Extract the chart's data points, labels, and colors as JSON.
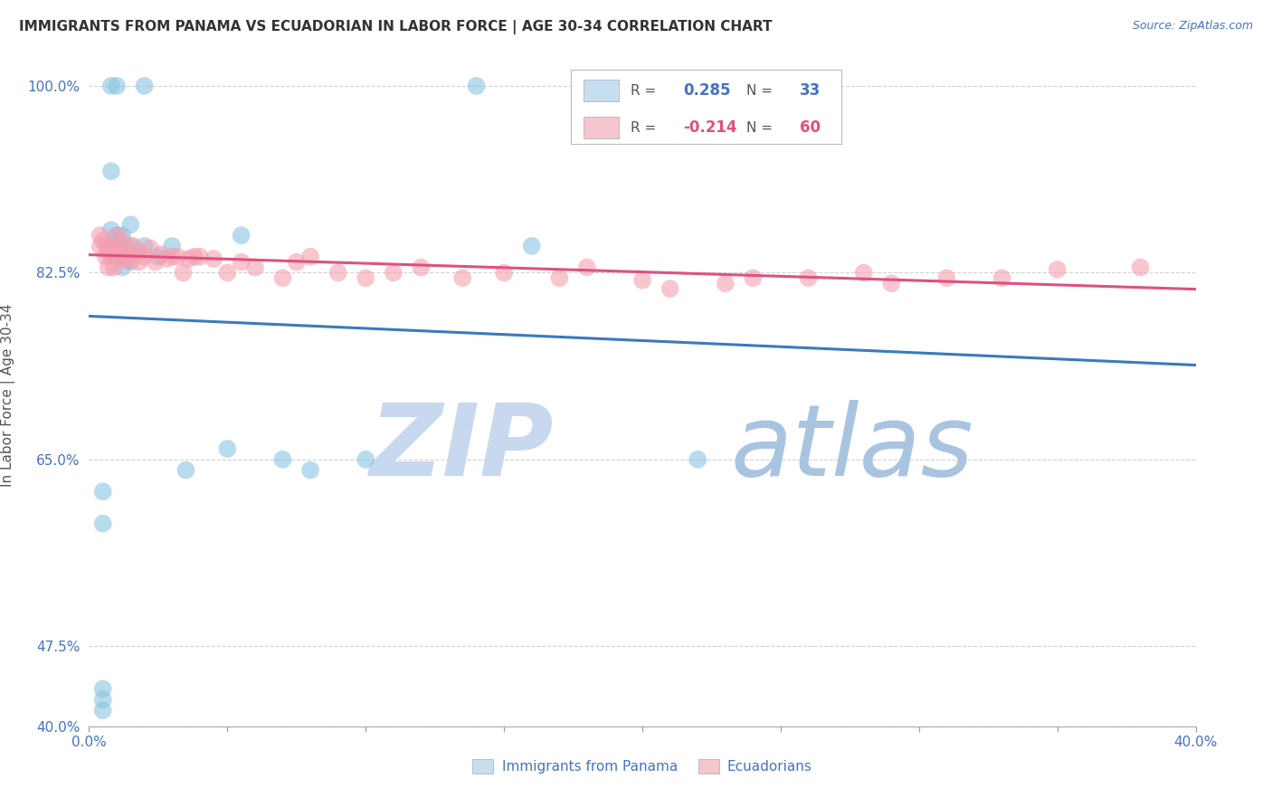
{
  "title": "IMMIGRANTS FROM PANAMA VS ECUADORIAN IN LABOR FORCE | AGE 30-34 CORRELATION CHART",
  "source": "Source: ZipAtlas.com",
  "ylabel": "In Labor Force | Age 30-34",
  "xlim": [
    0.0,
    0.4
  ],
  "ylim": [
    0.4,
    1.02
  ],
  "ytick_positions": [
    0.4,
    0.475,
    0.65,
    0.825,
    1.0
  ],
  "ytick_labels": [
    "40.0%",
    "47.5%",
    "65.0%",
    "82.5%",
    "100.0%"
  ],
  "xtick_positions": [
    0.0,
    0.05,
    0.1,
    0.15,
    0.2,
    0.25,
    0.3,
    0.35,
    0.4
  ],
  "xtick_labels": [
    "0.0%",
    "",
    "",
    "",
    "",
    "",
    "",
    "",
    "40.0%"
  ],
  "panama_R": 0.285,
  "panama_N": 33,
  "ecuador_R": -0.214,
  "ecuador_N": 60,
  "panama_dot_color": "#89c4e1",
  "ecuador_dot_color": "#f4a0b0",
  "panama_line_color": "#3a7abf",
  "ecuador_line_color": "#e05080",
  "legend_bg_panama": "#c5dff0",
  "legend_bg_ecuador": "#f5c5d0",
  "title_color": "#333333",
  "axis_label_color": "#4472c4",
  "grid_color": "#cccccc",
  "watermark_zip_color": "#c8d8ee",
  "watermark_atlas_color": "#a8c4e0",
  "panama_x": [
    0.005,
    0.005,
    0.005,
    0.005,
    0.005,
    0.008,
    0.008,
    0.008,
    0.008,
    0.01,
    0.01,
    0.01,
    0.01,
    0.012,
    0.012,
    0.012,
    0.012,
    0.015,
    0.015,
    0.015,
    0.02,
    0.02,
    0.025,
    0.03,
    0.035,
    0.05,
    0.055,
    0.07,
    0.08,
    0.1,
    0.14,
    0.16,
    0.22
  ],
  "panama_y": [
    0.415,
    0.425,
    0.435,
    0.59,
    0.62,
    0.85,
    0.865,
    0.92,
    1.0,
    0.84,
    0.85,
    0.86,
    1.0,
    0.83,
    0.84,
    0.85,
    0.86,
    0.835,
    0.85,
    0.87,
    0.85,
    1.0,
    0.84,
    0.85,
    0.64,
    0.66,
    0.86,
    0.65,
    0.64,
    0.65,
    1.0,
    0.85,
    0.65
  ],
  "ecuador_x": [
    0.004,
    0.004,
    0.005,
    0.006,
    0.006,
    0.007,
    0.007,
    0.008,
    0.008,
    0.008,
    0.009,
    0.01,
    0.01,
    0.01,
    0.012,
    0.012,
    0.012,
    0.014,
    0.014,
    0.016,
    0.016,
    0.018,
    0.018,
    0.02,
    0.022,
    0.024,
    0.026,
    0.028,
    0.03,
    0.032,
    0.034,
    0.036,
    0.038,
    0.04,
    0.045,
    0.05,
    0.055,
    0.06,
    0.07,
    0.075,
    0.08,
    0.09,
    0.1,
    0.11,
    0.12,
    0.135,
    0.15,
    0.17,
    0.18,
    0.2,
    0.21,
    0.23,
    0.24,
    0.26,
    0.28,
    0.29,
    0.31,
    0.33,
    0.35,
    0.38
  ],
  "ecuador_y": [
    0.86,
    0.85,
    0.855,
    0.84,
    0.85,
    0.83,
    0.845,
    0.84,
    0.845,
    0.85,
    0.83,
    0.84,
    0.845,
    0.86,
    0.838,
    0.842,
    0.855,
    0.836,
    0.848,
    0.84,
    0.85,
    0.835,
    0.845,
    0.84,
    0.848,
    0.835,
    0.842,
    0.838,
    0.84,
    0.84,
    0.825,
    0.838,
    0.84,
    0.84,
    0.838,
    0.825,
    0.835,
    0.83,
    0.82,
    0.835,
    0.84,
    0.825,
    0.82,
    0.825,
    0.83,
    0.82,
    0.825,
    0.82,
    0.83,
    0.818,
    0.81,
    0.815,
    0.82,
    0.82,
    0.825,
    0.815,
    0.82,
    0.82,
    0.828,
    0.83
  ]
}
